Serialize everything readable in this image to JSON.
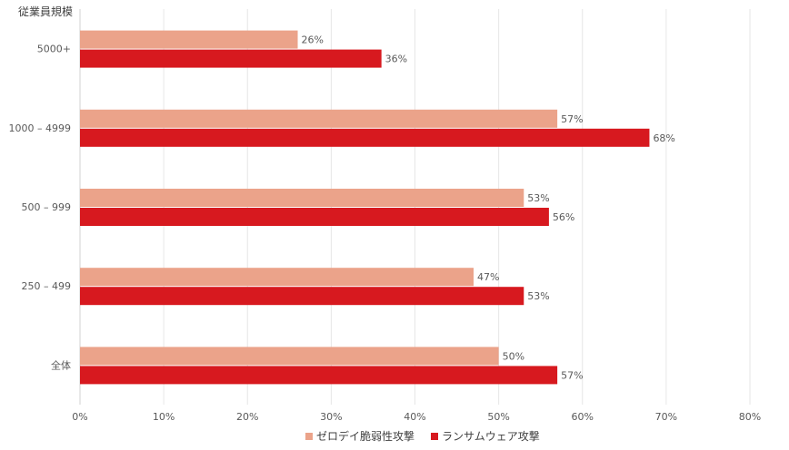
{
  "chart_data": {
    "type": "bar",
    "orientation": "horizontal",
    "y_axis_title": "従業員規模",
    "categories": [
      "5000+",
      "1000 – 4999",
      "500 – 999",
      "250 – 499",
      "全体"
    ],
    "series": [
      {
        "name": "ゼロデイ脆弱性攻撃",
        "color": "#eba38a",
        "values": [
          26,
          57,
          53,
          47,
          50
        ]
      },
      {
        "name": "ランサムウェア攻撃",
        "color": "#d7191f",
        "values": [
          36,
          68,
          56,
          53,
          57
        ]
      }
    ],
    "xlim": [
      0,
      80
    ],
    "xticks": [
      0,
      10,
      20,
      30,
      40,
      50,
      60,
      70,
      80
    ],
    "tick_suffix": "%",
    "grid": true,
    "legend_position": "bottom"
  }
}
